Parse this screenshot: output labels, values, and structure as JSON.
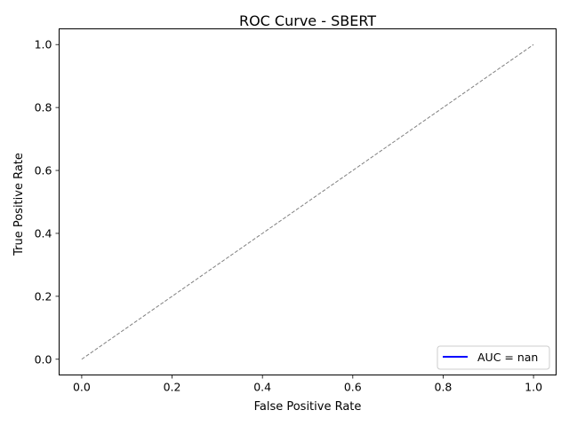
{
  "chart_data": {
    "type": "line",
    "title": "ROC Curve - SBERT",
    "xlabel": "False Positive Rate",
    "ylabel": "True Positive Rate",
    "xlim": [
      -0.05,
      1.05
    ],
    "ylim": [
      -0.05,
      1.05
    ],
    "xticks": [
      "0.0",
      "0.2",
      "0.4",
      "0.6",
      "0.8",
      "1.0"
    ],
    "yticks": [
      "0.0",
      "0.2",
      "0.4",
      "0.6",
      "0.8",
      "1.0"
    ],
    "grid": false,
    "legend": {
      "position": "lower-right"
    },
    "series": [
      {
        "name": "AUC = nan",
        "x": [],
        "y": [],
        "color": "#0000ff",
        "style": "solid"
      },
      {
        "x": [
          0,
          1
        ],
        "y": [
          0,
          1
        ],
        "color": "#808080",
        "style": "dashed"
      }
    ]
  }
}
